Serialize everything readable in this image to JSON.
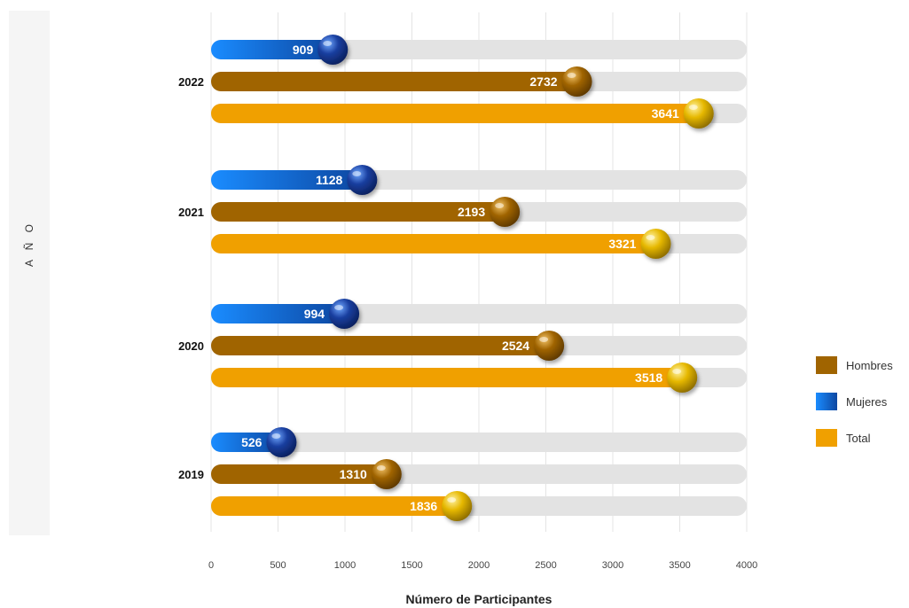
{
  "chart_data": {
    "type": "bar",
    "orientation": "horizontal",
    "categories": [
      "2022",
      "2021",
      "2020",
      "2019"
    ],
    "series": [
      {
        "name": "Mujeres",
        "values": [
          909,
          1128,
          994,
          526
        ],
        "color": "#1565c0"
      },
      {
        "name": "Hombres",
        "values": [
          2732,
          2193,
          2524,
          1310
        ],
        "color": "#a06400"
      },
      {
        "name": "Total",
        "values": [
          3641,
          3321,
          3518,
          1836
        ],
        "color": "#f0a000"
      }
    ],
    "xlabel": "Número de Participantes",
    "ylabel": "A Ñ O",
    "xlim": [
      0,
      4000
    ],
    "xticks": [
      "0",
      "500",
      "1000",
      "1500",
      "2000",
      "2500",
      "3000",
      "3500",
      "4000"
    ],
    "grid": true,
    "legend": {
      "placement": "right",
      "items": [
        {
          "name": "Hombres",
          "color": "#a06400"
        },
        {
          "name": "Mujeres",
          "color": "#1565c0"
        },
        {
          "name": "Total",
          "color": "#f0a000"
        }
      ]
    }
  }
}
